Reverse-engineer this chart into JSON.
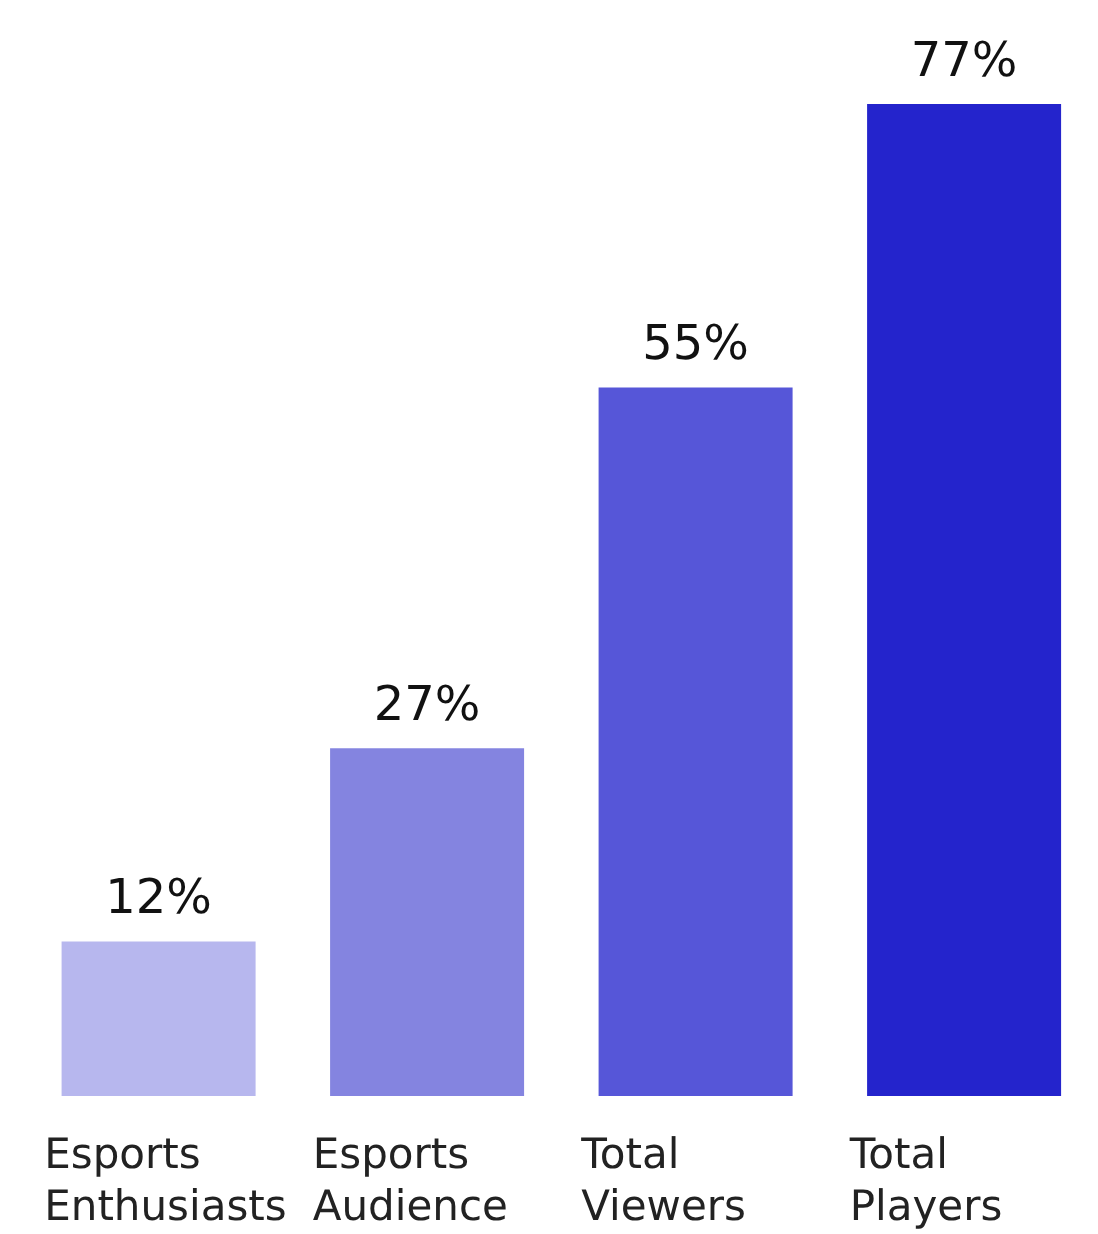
{
  "chart_data": {
    "type": "bar",
    "categories": [
      "Esports Enthusiasts",
      "Esports Audience",
      "Total Viewers",
      "Total Players"
    ],
    "values": [
      12,
      27,
      55,
      77
    ],
    "colors": [
      "#b7b7ee",
      "#8484e0",
      "#5656d8",
      "#2424cc"
    ],
    "value_labels": [
      "12%",
      "27%",
      "55%",
      "77%"
    ]
  }
}
